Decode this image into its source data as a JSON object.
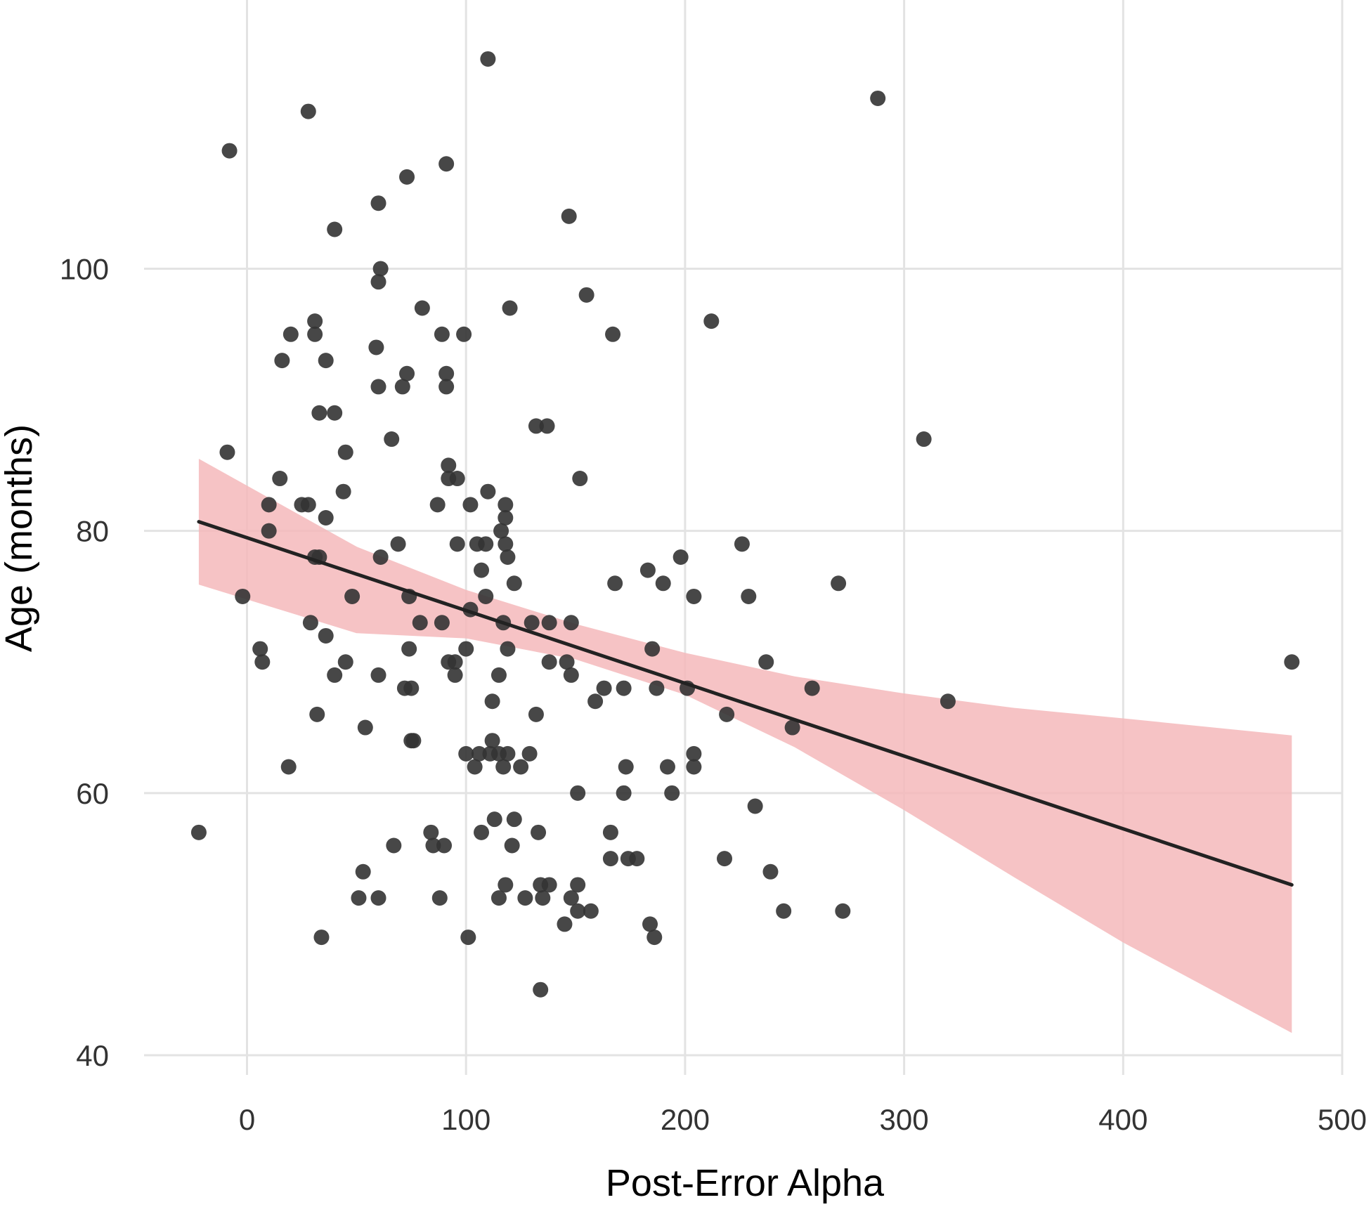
{
  "chart_data": {
    "type": "scatter",
    "title": "",
    "xlabel": "Post-Error Alpha",
    "ylabel": "Age (months)",
    "xlim": [
      -47,
      500
    ],
    "ylim": [
      38.5,
      120.5
    ],
    "x_ticks": [
      0,
      100,
      200,
      300,
      400,
      500
    ],
    "y_ticks": [
      40,
      60,
      80,
      100
    ],
    "x_tick_labels": [
      "0",
      "100",
      "200",
      "300",
      "400",
      "500"
    ],
    "y_tick_labels": [
      "40",
      "60",
      "80",
      "100"
    ],
    "grid": true,
    "legend": "none",
    "colors": {
      "points": "#333333",
      "fit_line": "#222222",
      "ribbon": "#f4b8bb",
      "grid": "#e3e3e3"
    },
    "points": [
      [
        110,
        116
      ],
      [
        288,
        113
      ],
      [
        28,
        112
      ],
      [
        -8,
        109
      ],
      [
        91,
        108
      ],
      [
        73,
        107
      ],
      [
        60,
        105
      ],
      [
        147,
        104
      ],
      [
        40,
        103
      ],
      [
        61,
        100
      ],
      [
        60,
        99
      ],
      [
        155,
        98
      ],
      [
        80,
        97
      ],
      [
        120,
        97
      ],
      [
        31,
        96
      ],
      [
        212,
        96
      ],
      [
        31,
        95
      ],
      [
        20,
        95
      ],
      [
        89,
        95
      ],
      [
        99,
        95
      ],
      [
        167,
        95
      ],
      [
        16,
        93
      ],
      [
        36,
        93
      ],
      [
        59,
        94
      ],
      [
        73,
        92
      ],
      [
        91,
        92
      ],
      [
        60,
        91
      ],
      [
        71,
        91
      ],
      [
        91,
        91
      ],
      [
        33,
        89
      ],
      [
        40,
        89
      ],
      [
        132,
        88
      ],
      [
        137,
        88
      ],
      [
        66,
        87
      ],
      [
        309,
        87
      ],
      [
        -9,
        86
      ],
      [
        45,
        86
      ],
      [
        92,
        85
      ],
      [
        15,
        84
      ],
      [
        92,
        84
      ],
      [
        96,
        84
      ],
      [
        152,
        84
      ],
      [
        44,
        83
      ],
      [
        110,
        83
      ],
      [
        10,
        82
      ],
      [
        25,
        82
      ],
      [
        28,
        82
      ],
      [
        87,
        82
      ],
      [
        102,
        82
      ],
      [
        118,
        82
      ],
      [
        36,
        81
      ],
      [
        118,
        81
      ],
      [
        10,
        80
      ],
      [
        116,
        80
      ],
      [
        69,
        79
      ],
      [
        96,
        79
      ],
      [
        105,
        79
      ],
      [
        109,
        79
      ],
      [
        118,
        79
      ],
      [
        226,
        79
      ],
      [
        31,
        78
      ],
      [
        33,
        78
      ],
      [
        61,
        78
      ],
      [
        119,
        78
      ],
      [
        198,
        78
      ],
      [
        107,
        77
      ],
      [
        183,
        77
      ],
      [
        122,
        76
      ],
      [
        168,
        76
      ],
      [
        190,
        76
      ],
      [
        270,
        76
      ],
      [
        -2,
        75
      ],
      [
        48,
        75
      ],
      [
        74,
        75
      ],
      [
        109,
        75
      ],
      [
        204,
        75
      ],
      [
        229,
        75
      ],
      [
        102,
        74
      ],
      [
        29,
        73
      ],
      [
        79,
        73
      ],
      [
        89,
        73
      ],
      [
        117,
        73
      ],
      [
        130,
        73
      ],
      [
        138,
        73
      ],
      [
        148,
        73
      ],
      [
        36,
        72
      ],
      [
        6,
        71
      ],
      [
        74,
        71
      ],
      [
        100,
        71
      ],
      [
        119,
        71
      ],
      [
        185,
        71
      ],
      [
        7,
        70
      ],
      [
        45,
        70
      ],
      [
        92,
        70
      ],
      [
        95,
        70
      ],
      [
        138,
        70
      ],
      [
        146,
        70
      ],
      [
        237,
        70
      ],
      [
        477,
        70
      ],
      [
        40,
        69
      ],
      [
        60,
        69
      ],
      [
        95,
        69
      ],
      [
        115,
        69
      ],
      [
        148,
        69
      ],
      [
        72,
        68
      ],
      [
        75,
        68
      ],
      [
        163,
        68
      ],
      [
        172,
        68
      ],
      [
        187,
        68
      ],
      [
        201,
        68
      ],
      [
        258,
        68
      ],
      [
        112,
        67
      ],
      [
        159,
        67
      ],
      [
        320,
        67
      ],
      [
        32,
        66
      ],
      [
        132,
        66
      ],
      [
        219,
        66
      ],
      [
        54,
        65
      ],
      [
        249,
        65
      ],
      [
        75,
        64
      ],
      [
        76,
        64
      ],
      [
        112,
        64
      ],
      [
        100,
        63
      ],
      [
        106,
        63
      ],
      [
        111,
        63
      ],
      [
        115,
        63
      ],
      [
        119,
        63
      ],
      [
        129,
        63
      ],
      [
        204,
        63
      ],
      [
        19,
        62
      ],
      [
        104,
        62
      ],
      [
        117,
        62
      ],
      [
        125,
        62
      ],
      [
        173,
        62
      ],
      [
        192,
        62
      ],
      [
        204,
        62
      ],
      [
        151,
        60
      ],
      [
        172,
        60
      ],
      [
        194,
        60
      ],
      [
        232,
        59
      ],
      [
        -22,
        57
      ],
      [
        84,
        57
      ],
      [
        107,
        57
      ],
      [
        133,
        57
      ],
      [
        166,
        57
      ],
      [
        85,
        56
      ],
      [
        67,
        56
      ],
      [
        90,
        56
      ],
      [
        121,
        56
      ],
      [
        113,
        58
      ],
      [
        122,
        58
      ],
      [
        166,
        55
      ],
      [
        174,
        55
      ],
      [
        178,
        55
      ],
      [
        218,
        55
      ],
      [
        53,
        54
      ],
      [
        239,
        54
      ],
      [
        118,
        53
      ],
      [
        134,
        53
      ],
      [
        138,
        53
      ],
      [
        151,
        53
      ],
      [
        51,
        52
      ],
      [
        60,
        52
      ],
      [
        88,
        52
      ],
      [
        115,
        52
      ],
      [
        127,
        52
      ],
      [
        135,
        52
      ],
      [
        148,
        52
      ],
      [
        151,
        51
      ],
      [
        157,
        51
      ],
      [
        245,
        51
      ],
      [
        272,
        51
      ],
      [
        145,
        50
      ],
      [
        184,
        50
      ],
      [
        34,
        49
      ],
      [
        101,
        49
      ],
      [
        186,
        49
      ],
      [
        134,
        45
      ]
    ],
    "fit_line": {
      "x": [
        -22,
        477
      ],
      "y": [
        80.7,
        53.0
      ]
    },
    "confidence_band": {
      "x": [
        -22,
        50,
        100,
        150,
        200,
        250,
        300,
        350,
        400,
        477
      ],
      "upper": [
        85.5,
        78.8,
        75.5,
        72.9,
        70.7,
        68.9,
        67.6,
        66.5,
        65.7,
        64.4
      ],
      "lower": [
        75.9,
        72.2,
        71.8,
        70.2,
        67.5,
        63.5,
        58.7,
        53.6,
        48.6,
        41.7
      ]
    }
  }
}
